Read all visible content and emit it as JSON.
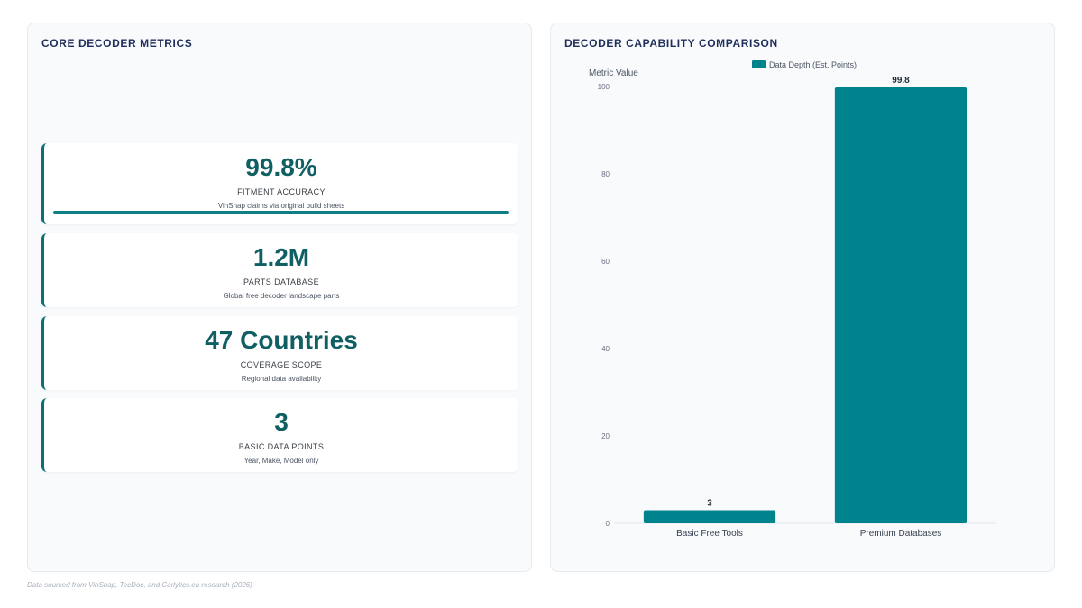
{
  "left_panel": {
    "title": "CORE DECODER METRICS",
    "metrics": [
      {
        "value": "99.8%",
        "label": "FITMENT ACCURACY",
        "description": "VinSnap claims via original build sheets",
        "progress": 99.8
      },
      {
        "value": "1.2M",
        "label": "PARTS DATABASE",
        "description": "Global free decoder landscape parts"
      },
      {
        "value": "47 Countries",
        "label": "COVERAGE SCOPE",
        "description": "Regional data availability"
      },
      {
        "value": "3",
        "label": "BASIC DATA POINTS",
        "description": "Year, Make, Model only"
      }
    ]
  },
  "right_panel": {
    "title": "DECODER CAPABILITY COMPARISON"
  },
  "chart_data": {
    "type": "bar",
    "categories": [
      "Basic Free Tools",
      "Premium Databases"
    ],
    "series": [
      {
        "name": "Data Depth (Est. Points)",
        "values": [
          3,
          99.8
        ],
        "color": "#00838c"
      }
    ],
    "data_labels": [
      "3",
      "99.8"
    ],
    "title": "",
    "xlabel": "",
    "ylabel": "Metric Value",
    "ylim": [
      0,
      100
    ],
    "yticks": [
      0,
      20,
      40,
      60,
      80,
      100
    ],
    "grid": false,
    "legend_position": "top"
  },
  "footnote": "Data sourced from VinSnap, TecDoc, and Carlytics.eu research (2026)",
  "colors": {
    "accent": "#0f5f63",
    "bar": "#00838c",
    "title": "#1e2d5a"
  }
}
